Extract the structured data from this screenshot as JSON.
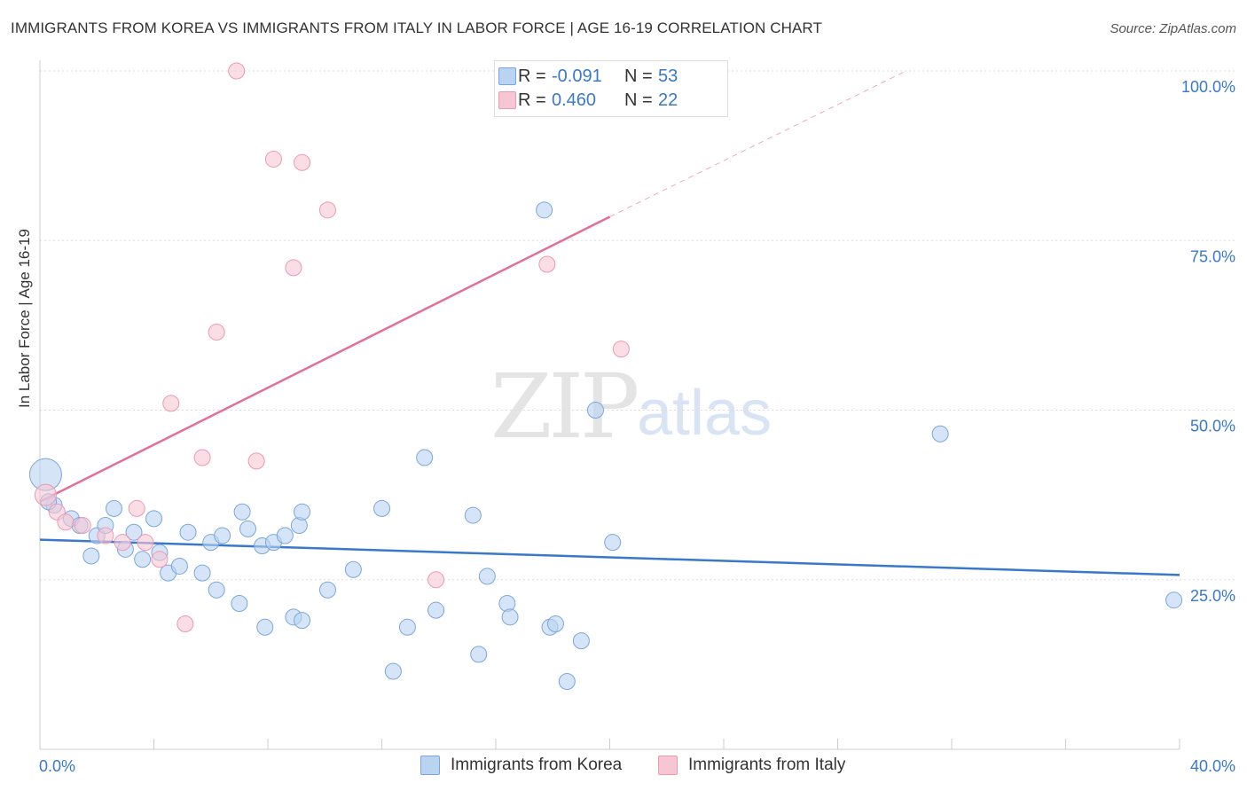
{
  "title": "IMMIGRANTS FROM KOREA VS IMMIGRANTS FROM ITALY IN LABOR FORCE | AGE 16-19 CORRELATION CHART",
  "source": "Source: ZipAtlas.com",
  "watermark": {
    "zip": "ZIP",
    "atlas": "atlas"
  },
  "legend": {
    "korea": {
      "r_label": "R =",
      "r_value": "-0.091",
      "n_label": "N =",
      "n_value": "53"
    },
    "italy": {
      "r_label": "R =",
      "r_value": "0.460",
      "n_label": "N =",
      "n_value": "22"
    }
  },
  "colors": {
    "korea_fill": "#b9d3f1",
    "korea_stroke": "#7aa6dc",
    "korea_line": "#3a78c9",
    "italy_fill": "#f6c6d4",
    "italy_stroke": "#eb9ab3",
    "italy_line": "#e07099",
    "axis_text": "#3a78c9",
    "grid": "#dddddd"
  },
  "chart_data": {
    "type": "scatter",
    "xlabel": "",
    "ylabel": "In Labor Force | Age 16-19",
    "xlim": [
      0,
      40
    ],
    "ylim": [
      0,
      100
    ],
    "x_tick_labels": {
      "min": "0.0%",
      "max": "40.0%"
    },
    "y_tick_labels": [
      "25.0%",
      "50.0%",
      "75.0%",
      "100.0%"
    ],
    "y_ticks": [
      25,
      50,
      75,
      100
    ],
    "series": [
      {
        "name": "Immigrants from Korea",
        "points": [
          [
            0.2,
            40.5
          ],
          [
            0.5,
            36
          ],
          [
            1.1,
            34
          ],
          [
            1.4,
            33
          ],
          [
            1.8,
            28.5
          ],
          [
            2.0,
            31.5
          ],
          [
            2.3,
            33
          ],
          [
            2.6,
            35.5
          ],
          [
            3.0,
            29.5
          ],
          [
            3.3,
            32
          ],
          [
            3.6,
            28
          ],
          [
            4.0,
            34
          ],
          [
            4.2,
            29
          ],
          [
            4.5,
            26
          ],
          [
            4.9,
            27
          ],
          [
            5.2,
            32
          ],
          [
            5.7,
            26
          ],
          [
            6.0,
            30.5
          ],
          [
            6.2,
            23.5
          ],
          [
            6.4,
            31.5
          ],
          [
            7.0,
            21.5
          ],
          [
            7.1,
            35
          ],
          [
            7.3,
            32.5
          ],
          [
            7.8,
            30
          ],
          [
            7.9,
            18
          ],
          [
            8.2,
            30.5
          ],
          [
            8.6,
            31.5
          ],
          [
            8.9,
            19.5
          ],
          [
            9.1,
            33
          ],
          [
            9.2,
            35
          ],
          [
            9.2,
            19
          ],
          [
            10.1,
            23.5
          ],
          [
            11.0,
            26.5
          ],
          [
            12.0,
            35.5
          ],
          [
            12.4,
            11.5
          ],
          [
            12.9,
            18
          ],
          [
            13.5,
            43
          ],
          [
            13.9,
            20.5
          ],
          [
            15.2,
            34.5
          ],
          [
            15.4,
            14
          ],
          [
            15.7,
            25.5
          ],
          [
            16.4,
            21.5
          ],
          [
            16.5,
            19.5
          ],
          [
            17.7,
            79.5
          ],
          [
            17.9,
            18
          ],
          [
            18.1,
            18.5
          ],
          [
            18.5,
            10
          ],
          [
            19.0,
            16
          ],
          [
            19.5,
            50
          ],
          [
            20.1,
            30.5
          ],
          [
            31.6,
            46.5
          ],
          [
            39.8,
            22
          ],
          [
            0.3,
            36.5
          ]
        ],
        "sizes": [
          18,
          9,
          9,
          9,
          9,
          9,
          9,
          9,
          9,
          9,
          9,
          9,
          9,
          9,
          9,
          9,
          9,
          9,
          9,
          9,
          9,
          9,
          9,
          9,
          9,
          9,
          9,
          9,
          9,
          9,
          9,
          9,
          9,
          9,
          9,
          9,
          9,
          9,
          9,
          9,
          9,
          9,
          9,
          9,
          9,
          9,
          9,
          9,
          9,
          9,
          9,
          9,
          9
        ]
      },
      {
        "name": "Immigrants from Italy",
        "points": [
          [
            0.2,
            37.5
          ],
          [
            0.6,
            35
          ],
          [
            1.5,
            33
          ],
          [
            2.3,
            31.5
          ],
          [
            2.9,
            30.5
          ],
          [
            3.4,
            35.5
          ],
          [
            3.7,
            30.5
          ],
          [
            4.2,
            28
          ],
          [
            4.6,
            51
          ],
          [
            5.1,
            18.5
          ],
          [
            5.7,
            43
          ],
          [
            6.2,
            61.5
          ],
          [
            6.9,
            100
          ],
          [
            7.6,
            42.5
          ],
          [
            8.2,
            87
          ],
          [
            8.9,
            71
          ],
          [
            9.2,
            86.5
          ],
          [
            10.1,
            79.5
          ],
          [
            13.9,
            25
          ],
          [
            17.8,
            71.5
          ],
          [
            20.4,
            59
          ],
          [
            0.9,
            33.5
          ]
        ],
        "sizes": [
          12,
          9,
          9,
          9,
          9,
          9,
          9,
          9,
          9,
          9,
          9,
          9,
          9,
          9,
          9,
          9,
          9,
          9,
          9,
          9,
          9,
          9
        ]
      }
    ],
    "trend_lines": [
      {
        "name": "Immigrants from Korea",
        "x": [
          0,
          40
        ],
        "y": [
          30.9,
          25.7
        ],
        "dashed_extension": false
      },
      {
        "name": "Immigrants from Italy",
        "x": [
          0,
          20
        ],
        "y": [
          36.5,
          78.5
        ],
        "dashed_to": [
          30.4,
          100
        ]
      }
    ]
  },
  "bottom_legend": {
    "korea": "Immigrants from Korea",
    "italy": "Immigrants from Italy"
  }
}
